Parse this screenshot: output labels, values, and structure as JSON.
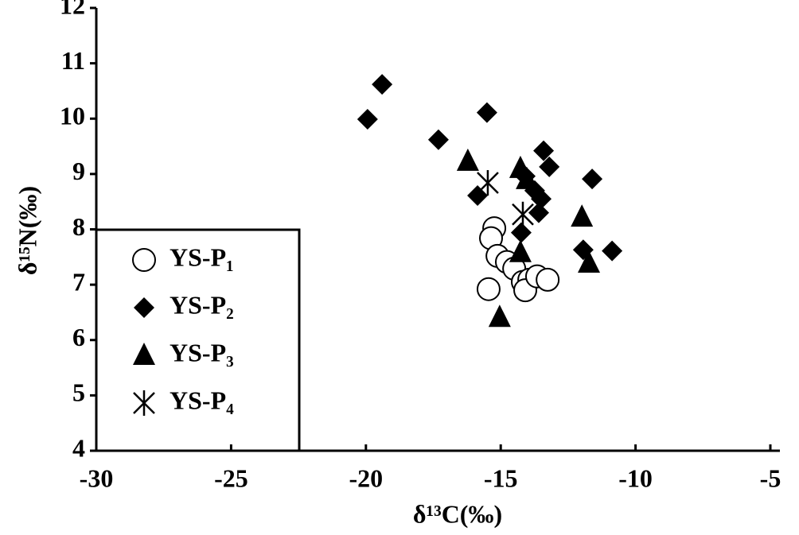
{
  "chart_data": {
    "type": "scatter",
    "x_label": "δ¹³C(‰)",
    "y_label": "δ¹⁵N(‰)",
    "xlim": [
      -30,
      -5
    ],
    "ylim": [
      4,
      12
    ],
    "xticks": [
      -30,
      -25,
      -20,
      -15,
      -10,
      -5
    ],
    "yticks": [
      4,
      5,
      6,
      7,
      8,
      9,
      10,
      11,
      12
    ],
    "legend": "bottom-left",
    "series": [
      {
        "name": "YS-P₁",
        "marker": "circle",
        "color": "#000000",
        "x": [
          -15.24,
          -15.36,
          -15.12,
          -14.77,
          -14.5,
          -15.45,
          -14.18,
          -13.94,
          -14.09,
          -13.65,
          -13.26
        ],
        "values": [
          8.02,
          7.84,
          7.52,
          7.41,
          7.29,
          6.92,
          7.05,
          7.09,
          6.9,
          7.15,
          7.09
        ]
      },
      {
        "name": "YS-P₂",
        "marker": "diamond",
        "color": "#000000",
        "x": [
          -19.94,
          -19.4,
          -17.31,
          -15.51,
          -15.86,
          -14.24,
          -13.41,
          -13.2,
          -13.5,
          -13.59,
          -11.61,
          -11.94,
          -10.87,
          -14.09,
          -13.74
        ],
        "values": [
          9.99,
          10.62,
          9.62,
          10.11,
          8.61,
          7.94,
          9.42,
          9.13,
          8.55,
          8.3,
          8.91,
          7.63,
          7.61,
          8.96,
          8.7
        ]
      },
      {
        "name": "YS-P₃",
        "marker": "triangle",
        "color": "#000000",
        "x": [
          -16.22,
          -14.27,
          -14.03,
          -14.27,
          -15.04,
          -11.99,
          -11.73
        ],
        "values": [
          9.23,
          9.1,
          8.9,
          7.58,
          6.41,
          8.22,
          7.39
        ]
      },
      {
        "name": "YS-P₄",
        "marker": "asterisk",
        "color": "#000000",
        "x": [
          -15.48,
          -14.18
        ],
        "values": [
          8.84,
          8.27
        ]
      }
    ]
  }
}
